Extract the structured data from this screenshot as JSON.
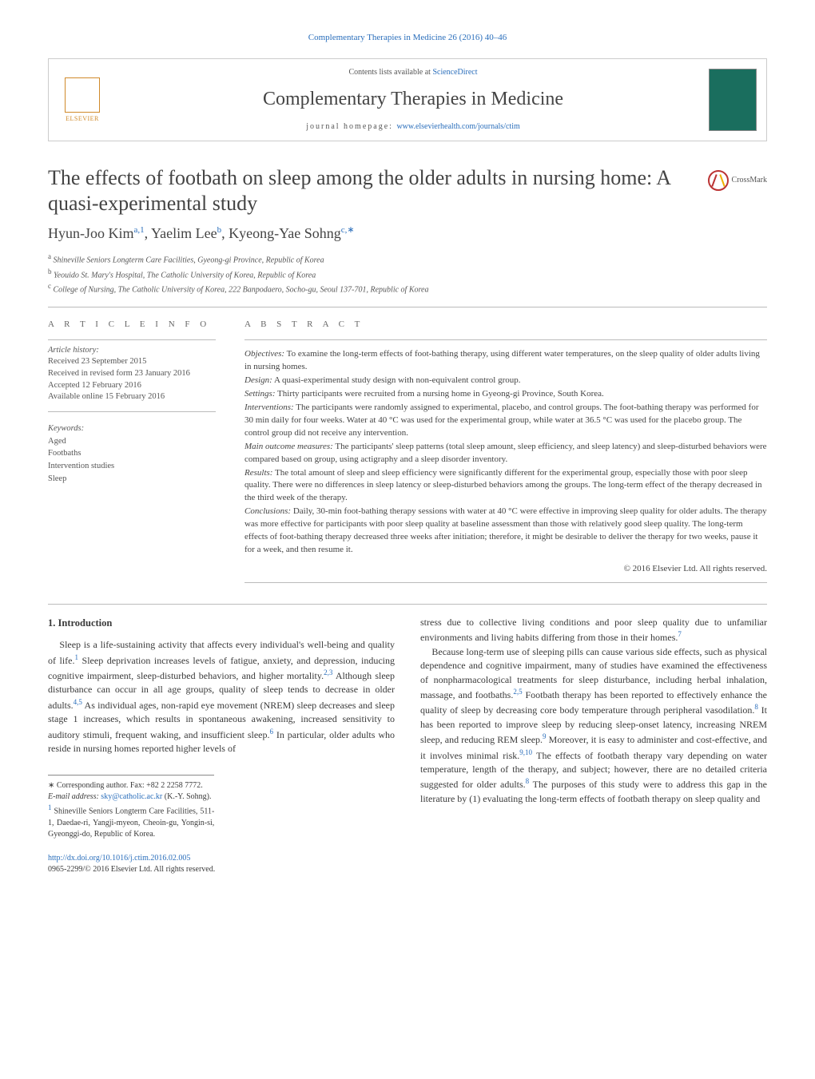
{
  "citation": "Complementary Therapies in Medicine 26 (2016) 40–46",
  "banner": {
    "contents_prefix": "Contents lists available at ",
    "contents_link": "ScienceDirect",
    "journal_title": "Complementary Therapies in Medicine",
    "homepage_prefix": "journal homepage: ",
    "homepage_link": "www.elsevierhealth.com/journals/ctim",
    "elsevier": "ELSEVIER"
  },
  "crossmark": "CrossMark",
  "title": "The effects of footbath on sleep among the older adults in nursing home: A quasi-experimental study",
  "authors_html": "Hyun-Joo Kim",
  "author1": "Hyun-Joo Kim",
  "sup1": "a,1",
  "author2": ", Yaelim Lee",
  "sup2": "b",
  "author3": ", Kyeong-Yae Sohng",
  "sup3": "c,∗",
  "affiliations": {
    "a_sup": "a",
    "a": "Shineville Seniors Longterm Care Facilities, Gyeong-gi Province, Republic of Korea",
    "b_sup": "b",
    "b": "Yeouido St. Mary's Hospital, The Catholic University of Korea, Republic of Korea",
    "c_sup": "c",
    "c": "College of Nursing, The Catholic University of Korea, 222 Banpodaero, Socho-gu, Seoul 137-701, Republic of Korea"
  },
  "info": {
    "heading": "a r t i c l e   i n f o",
    "history_label": "Article history:",
    "received": "Received 23 September 2015",
    "revised": "Received in revised form 23 January 2016",
    "accepted": "Accepted 12 February 2016",
    "online": "Available online 15 February 2016",
    "keywords_label": "Keywords:",
    "keywords": [
      "Aged",
      "Footbaths",
      "Intervention studies",
      "Sleep"
    ]
  },
  "abstract": {
    "heading": "a b s t r a c t",
    "objectives_label": "Objectives:",
    "objectives": " To examine the long-term effects of foot-bathing therapy, using different water temperatures, on the sleep quality of older adults living in nursing homes.",
    "design_label": "Design:",
    "design": " A quasi-experimental study design with non-equivalent control group.",
    "settings_label": "Settings:",
    "settings": " Thirty participants were recruited from a nursing home in Gyeong-gi Province, South Korea.",
    "interventions_label": "Interventions:",
    "interventions": " The participants were randomly assigned to experimental, placebo, and control groups. The foot-bathing therapy was performed for 30 min daily for four weeks. Water at 40 °C was used for the experimental group, while water at 36.5 °C was used for the placebo group. The control group did not receive any intervention.",
    "measures_label": "Main outcome measures:",
    "measures": " The participants' sleep patterns (total sleep amount, sleep efficiency, and sleep latency) and sleep-disturbed behaviors were compared based on group, using actigraphy and a sleep disorder inventory.",
    "results_label": "Results:",
    "results": " The total amount of sleep and sleep efficiency were significantly different for the experimental group, especially those with poor sleep quality. There were no differences in sleep latency or sleep-disturbed behaviors among the groups. The long-term effect of the therapy decreased in the third week of the therapy.",
    "conclusions_label": "Conclusions:",
    "conclusions": " Daily, 30-min foot-bathing therapy sessions with water at 40 °C were effective in improving sleep quality for older adults. The therapy was more effective for participants with poor sleep quality at baseline assessment than those with relatively good sleep quality. The long-term effects of foot-bathing therapy decreased three weeks after initiation; therefore, it might be desirable to deliver the therapy for two weeks, pause it for a week, and then resume it.",
    "copyright": "© 2016 Elsevier Ltd. All rights reserved."
  },
  "body": {
    "section_heading": "1. Introduction",
    "col1_p1a": "Sleep is a life-sustaining activity that affects every individual's well-being and quality of life.",
    "col1_s1": "1",
    "col1_p1b": " Sleep deprivation increases levels of fatigue, anxiety, and depression, inducing cognitive impairment, sleep-disturbed behaviors, and higher mortality.",
    "col1_s2": "2,3",
    "col1_p1c": " Although sleep disturbance can occur in all age groups, quality of sleep tends to decrease in older adults.",
    "col1_s3": "4,5",
    "col1_p1d": " As individual ages, non-rapid eye movement (NREM) sleep decreases and sleep stage 1 increases, which results in spontaneous awakening, increased sensitivity to auditory stimuli, frequent waking, and insufficient sleep.",
    "col1_s4": "6",
    "col1_p1e": " In particular, older adults who reside in nursing homes reported higher levels of",
    "col2_p1a": "stress due to collective living conditions and poor sleep quality due to unfamiliar environments and living habits differing from those in their homes.",
    "col2_s1": "7",
    "col2_p2a": "Because long-term use of sleeping pills can cause various side effects, such as physical dependence and cognitive impairment, many of studies have examined the effectiveness of nonpharmacological treatments for sleep disturbance, including herbal inhalation, massage, and footbaths.",
    "col2_s2": "2,5",
    "col2_p2b": " Footbath therapy has been reported to effectively enhance the quality of sleep by decreasing core body temperature through peripheral vasodilation.",
    "col2_s3": "8",
    "col2_p2c": " It has been reported to improve sleep by reducing sleep-onset latency, increasing NREM sleep, and reducing REM sleep.",
    "col2_s4": "9",
    "col2_p2d": " Moreover, it is easy to administer and cost-effective, and it involves minimal risk.",
    "col2_s5": "9,10",
    "col2_p2e": " The effects of footbath therapy vary depending on water temperature, length of the therapy, and subject; however, there are no detailed criteria suggested for older adults.",
    "col2_s6": "8",
    "col2_p2f": " The purposes of this study were to address this gap in the literature by (1) evaluating the long-term effects of footbath therapy on sleep quality and"
  },
  "footnotes": {
    "corr": "∗ Corresponding author. Fax: +82 2 2258 7772.",
    "email_label": "E-mail address: ",
    "email": "sky@catholic.ac.kr",
    "email_who": " (K.-Y. Sohng).",
    "note1_sup": "1",
    "note1": " Shineville Seniors Longterm Care Facilities, 511-1, Daedae-ri, Yangji-myeon, Cheoin-gu, Yongin-si, Gyeonggi-do, Republic of Korea."
  },
  "doi": {
    "link": "http://dx.doi.org/10.1016/j.ctim.2016.02.005",
    "issn": "0965-2299/© 2016 Elsevier Ltd. All rights reserved."
  }
}
